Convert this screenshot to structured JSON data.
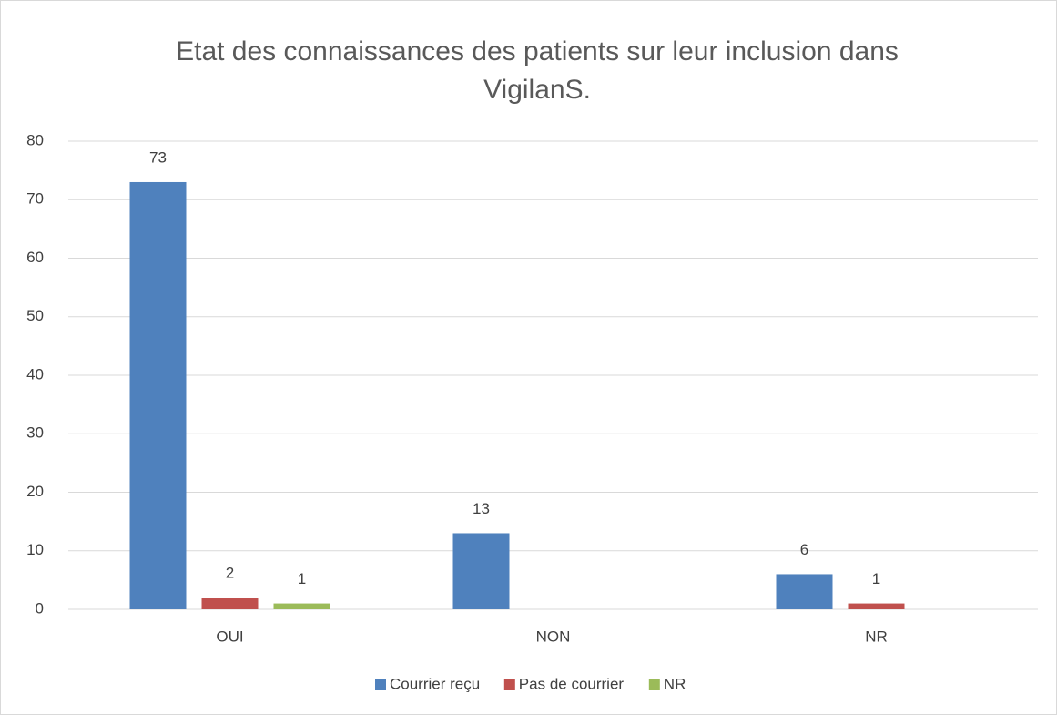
{
  "chart_data": {
    "type": "bar",
    "title": [
      "Etat des connaissances des patients sur leur inclusion dans",
      "VigilanS."
    ],
    "categories": [
      "OUI",
      "NON",
      "NR"
    ],
    "series": [
      {
        "name": "Courrier reçu",
        "color": "#4f81bd",
        "values": [
          73,
          13,
          6
        ]
      },
      {
        "name": "Pas de courrier",
        "color": "#c0504d",
        "values": [
          2,
          null,
          1
        ]
      },
      {
        "name": "NR",
        "color": "#9bbb59",
        "values": [
          1,
          null,
          null
        ]
      }
    ],
    "ylim": [
      0,
      80
    ],
    "yticks": [
      0,
      10,
      20,
      30,
      40,
      50,
      60,
      70,
      80
    ],
    "grid": true,
    "legend": "bottom"
  }
}
